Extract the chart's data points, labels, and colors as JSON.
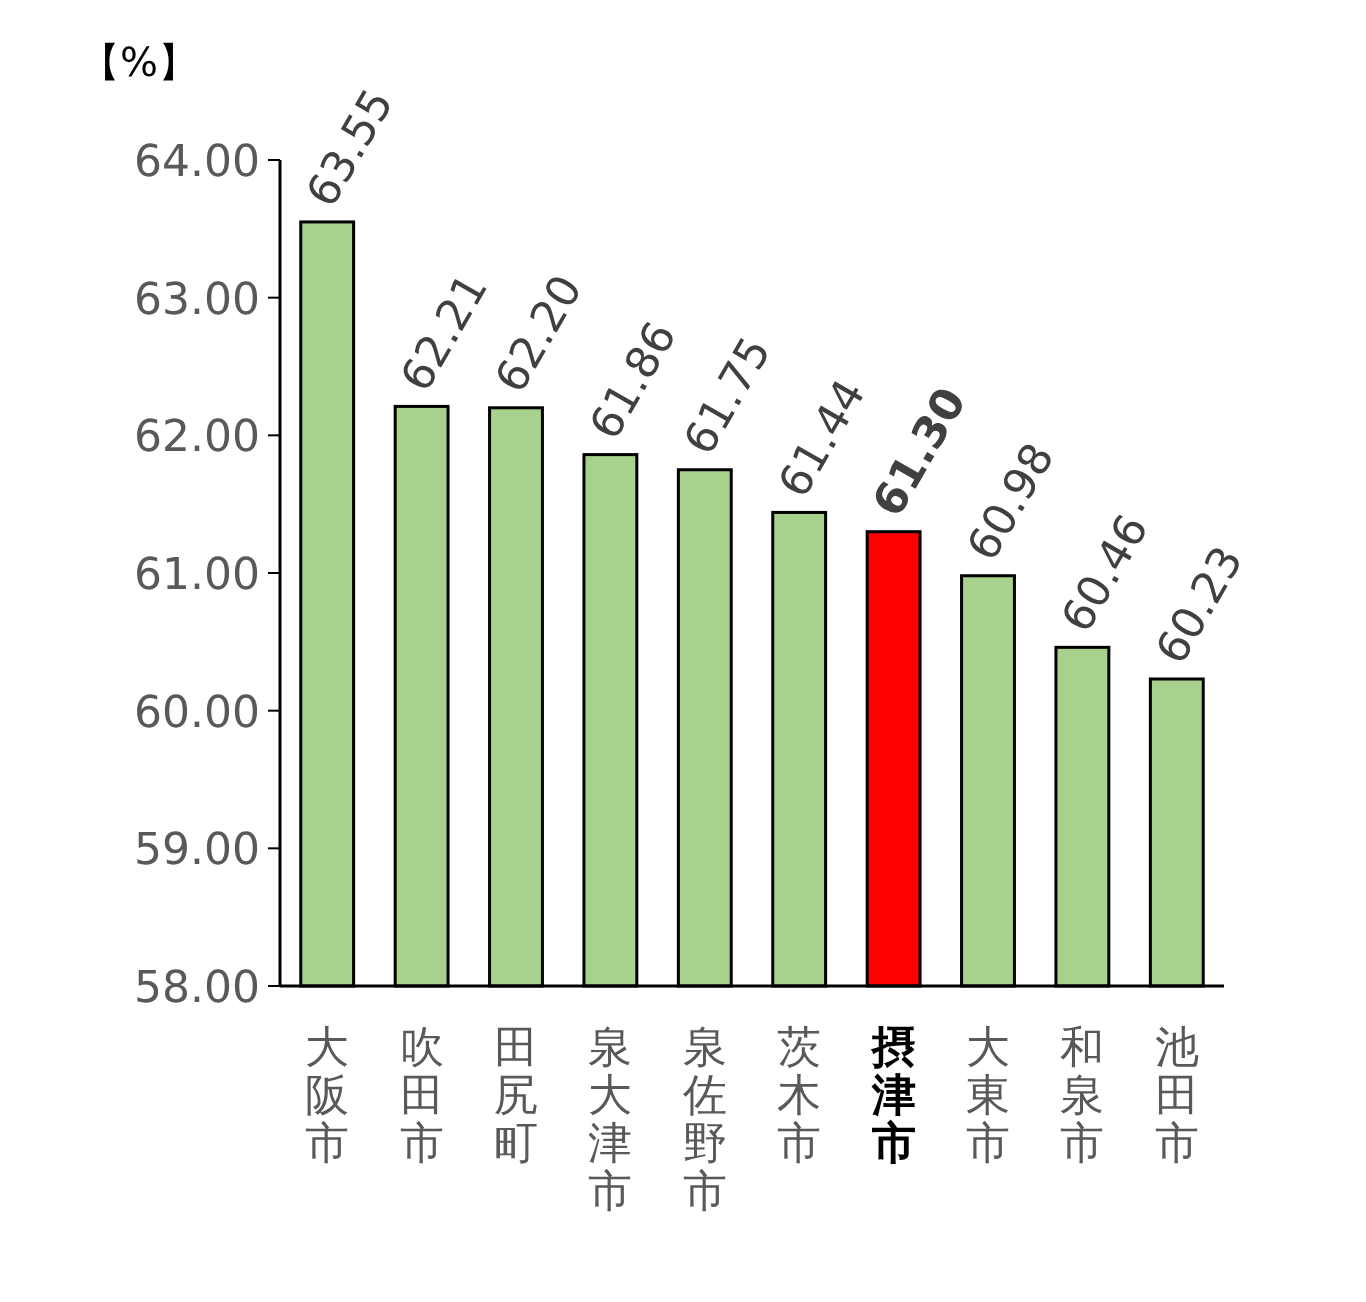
{
  "chart_data": {
    "type": "bar",
    "ylabel": "【%】",
    "categories": [
      "大阪市",
      "吹田市",
      "田尻町",
      "泉大津市",
      "泉佐野市",
      "茨木市",
      "摂津市",
      "大東市",
      "和泉市",
      "池田市"
    ],
    "values": [
      63.55,
      62.21,
      62.2,
      61.86,
      61.75,
      61.44,
      61.3,
      60.98,
      60.46,
      60.23
    ],
    "value_labels": [
      "63.55",
      "62.21",
      "62.20",
      "61.86",
      "61.75",
      "61.44",
      "61.30",
      "60.98",
      "60.46",
      "60.23"
    ],
    "colors": [
      "#a9d18e",
      "#a9d18e",
      "#a9d18e",
      "#a9d18e",
      "#a9d18e",
      "#a9d18e",
      "#ff0000",
      "#a9d18e",
      "#a9d18e",
      "#a9d18e"
    ],
    "ylim": [
      58,
      64
    ],
    "yticks": [
      {
        "value": 58,
        "label": "58.00"
      },
      {
        "value": 59,
        "label": "59.00"
      },
      {
        "value": 60,
        "label": "60.00"
      },
      {
        "value": 61,
        "label": "61.00"
      },
      {
        "value": 62,
        "label": "62.00"
      },
      {
        "value": 63,
        "label": "63.00"
      },
      {
        "value": 64,
        "label": "64.00"
      }
    ],
    "grid": false
  }
}
